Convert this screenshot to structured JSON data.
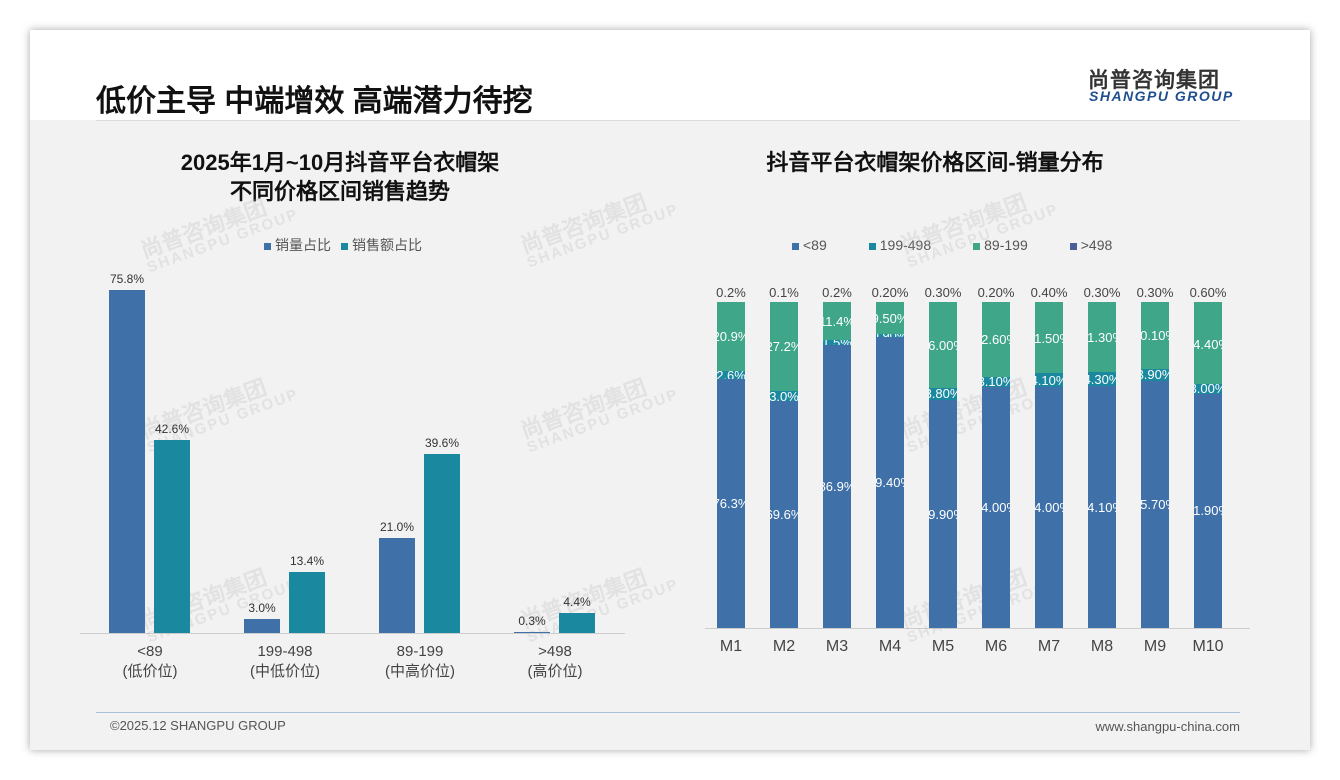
{
  "header": {
    "title": "低价主导 中端增效 高端潜力待挖",
    "logo_cn": "尚普咨询集团",
    "logo_en": "SHANGPU GROUP"
  },
  "footer": {
    "copyright": "©2025.12 SHANGPU GROUP",
    "website": "www.shangpu-china.com"
  },
  "chart_data": [
    {
      "type": "bar",
      "title_line1": "2025年1月~10月抖音平台衣帽架",
      "title_line2": "不同价格区间销售趋势",
      "categories": [
        "<89",
        "199-498",
        "89-199",
        ">498"
      ],
      "category_sublabels": [
        "(低价位)",
        "(中低价位)",
        "(中高价位)",
        "(高价位)"
      ],
      "series": [
        {
          "name": "销量占比",
          "color": "#3f70a8",
          "values": [
            75.8,
            3.0,
            21.0,
            0.3
          ]
        },
        {
          "name": "销售额占比",
          "color": "#1a89a0",
          "values": [
            42.6,
            13.4,
            39.6,
            4.4
          ]
        }
      ],
      "ylim": [
        0,
        100
      ],
      "value_suffix": "%"
    },
    {
      "type": "bar",
      "stacked": true,
      "title": "抖音平台衣帽架价格区间-销量分布",
      "categories": [
        "M1",
        "M2",
        "M3",
        "M4",
        "M5",
        "M6",
        "M7",
        "M8",
        "M9",
        "M10"
      ],
      "series": [
        {
          "name": "<89",
          "color": "#3f70a8",
          "labels": [
            "76.3%",
            "69.6%",
            "86.9%",
            "89.40%",
            "69.90%",
            "74.00%",
            "74.00%",
            "74.10%",
            "75.70%",
            "71.90%"
          ],
          "values": [
            76.3,
            69.6,
            86.9,
            89.4,
            69.9,
            74.0,
            74.0,
            74.1,
            75.7,
            71.9
          ]
        },
        {
          "name": "199-498",
          "color": "#1a89a0",
          "labels": [
            "2.6%",
            "3.0%",
            "1.5%",
            "0.90%",
            "3.80%",
            "3.10%",
            "4.10%",
            "4.30%",
            "3.90%",
            "3.00%"
          ],
          "values": [
            2.6,
            3.0,
            1.5,
            0.9,
            3.8,
            3.1,
            4.1,
            4.3,
            3.9,
            3.0
          ]
        },
        {
          "name": "89-199",
          "color": "#3fa68a",
          "labels": [
            "20.9%",
            "27.2%",
            "11.4%",
            "9.50%",
            "26.00%",
            "22.60%",
            "21.50%",
            "21.30%",
            "20.10%",
            "24.40%"
          ],
          "values": [
            20.9,
            27.2,
            11.4,
            9.5,
            26.0,
            22.6,
            21.5,
            21.3,
            20.1,
            24.4
          ]
        },
        {
          "name": ">498",
          "color": "#4a5d9a",
          "labels": [
            "0.2%",
            "0.1%",
            "0.2%",
            "0.20%",
            "0.30%",
            "0.20%",
            "0.40%",
            "0.30%",
            "0.30%",
            "0.60%"
          ],
          "values": [
            0.2,
            0.1,
            0.2,
            0.2,
            0.3,
            0.2,
            0.4,
            0.3,
            0.3,
            0.6
          ]
        }
      ],
      "ylim": [
        0,
        100
      ]
    }
  ]
}
